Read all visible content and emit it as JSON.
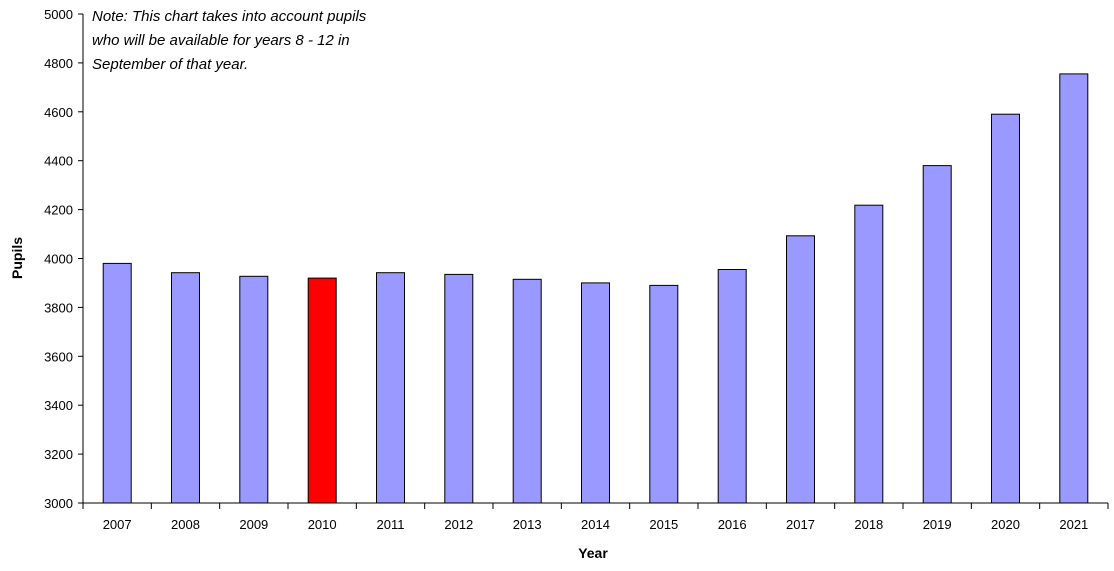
{
  "chart_data": {
    "type": "bar",
    "title": "",
    "xlabel": "Year",
    "ylabel": "Pupils",
    "ylim": [
      3000,
      5000
    ],
    "yticks": [
      3000,
      3200,
      3400,
      3600,
      3800,
      4000,
      4200,
      4400,
      4600,
      4800,
      5000
    ],
    "grid": false,
    "legend": "none",
    "categories": [
      "2007",
      "2008",
      "2009",
      "2010",
      "2011",
      "2012",
      "2013",
      "2014",
      "2015",
      "2016",
      "2017",
      "2018",
      "2019",
      "2020",
      "2021"
    ],
    "values": [
      3980,
      3942,
      3927,
      3920,
      3942,
      3935,
      3915,
      3900,
      3890,
      3955,
      4093,
      4218,
      4380,
      4590,
      4755
    ],
    "bar_color": "#9999ff",
    "highlight_color": "#ff0000",
    "highlight_category": "2010",
    "annotations": [
      "Note: This chart takes into account pupils",
      "who will be available for years 8 - 12 in",
      "September of that year."
    ]
  }
}
